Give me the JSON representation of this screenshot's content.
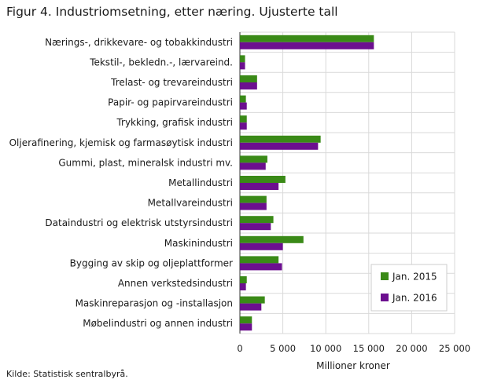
{
  "title": "Figur 4. Industriomsetning, etter næring. Ujusterte tall",
  "source": "Kilde: Statistisk sentralbyrå.",
  "colors": {
    "series_2015": "#3a8a17",
    "series_2016": "#6c0f8f",
    "grid": "#d9d9d9"
  },
  "chart_data": {
    "type": "bar",
    "orientation": "horizontal",
    "title": "Figur 4. Industriomsetning, etter næring. Ujusterte tall",
    "xlabel": "Millioner  kroner",
    "ylabel": "",
    "xlim": [
      0,
      25000
    ],
    "x_ticks": [
      0,
      5000,
      10000,
      15000,
      20000,
      25000
    ],
    "x_tick_labels": [
      "0",
      "5 000",
      "10 000",
      "15 000",
      "20 000",
      "25 000"
    ],
    "grid": true,
    "legend_position": "bottom-right",
    "categories": [
      "Nærings-, drikkevare- og tobakkindustri",
      "Tekstil-, bekledn.-, lærvareind.",
      "Trelast- og trevareindustri",
      "Papir- og papirvareindustri",
      "Trykking, grafisk industri",
      "Oljerafinering, kjemisk og farmasøytisk industri",
      "Gummi, plast, mineralsk industri mv.",
      "Metallindustri",
      "Metallvareindustri",
      "Dataindustri og elektrisk utstyrsindustri",
      "Maskinindustri",
      "Bygging av skip og oljeplattformer",
      "Annen verkstedsindustri",
      "Maskinreparasjon og -installasjon",
      "Møbelindustri og annen industri"
    ],
    "series": [
      {
        "name": "Jan. 2015",
        "color": "#3a8a17",
        "values": [
          15600,
          600,
          2000,
          700,
          800,
          9400,
          3200,
          5300,
          3100,
          3900,
          7400,
          4500,
          800,
          2900,
          1400
        ]
      },
      {
        "name": "Jan. 2016",
        "color": "#6c0f8f",
        "values": [
          15600,
          600,
          2000,
          800,
          800,
          9100,
          3000,
          4500,
          3100,
          3600,
          5000,
          4900,
          700,
          2500,
          1400
        ]
      }
    ]
  }
}
